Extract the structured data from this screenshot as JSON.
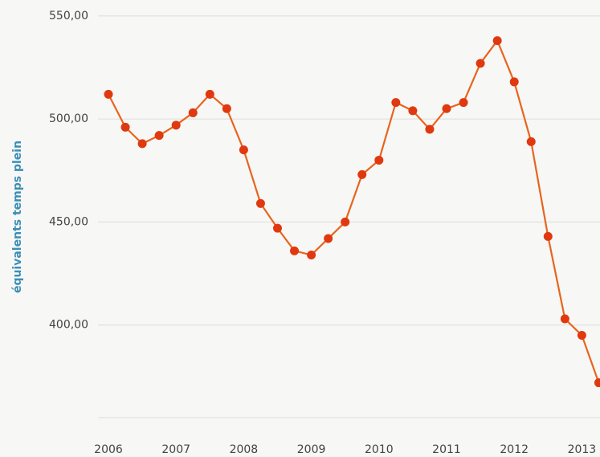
{
  "chart_data": {
    "type": "line",
    "y_label": "équivalents temps plein",
    "categories": [
      "2006",
      null,
      null,
      null,
      "2007",
      null,
      null,
      null,
      "2008",
      null,
      null,
      null,
      "2009",
      null,
      null,
      null,
      "2010",
      null,
      null,
      null,
      "2011",
      null,
      null,
      null,
      "2012",
      null,
      null,
      null,
      "2013",
      null
    ],
    "series": [
      {
        "name": "équivalents temps plein",
        "color": "#e8641e",
        "marker_color": "#e0390f",
        "values": [
          512,
          496,
          488,
          492,
          497,
          503,
          512,
          505,
          485,
          459,
          447,
          436,
          434,
          442,
          450,
          473,
          480,
          508,
          504,
          495,
          505,
          508,
          527,
          538,
          518,
          489,
          443,
          403,
          395,
          372
        ]
      }
    ],
    "ylim": [
      350,
      555
    ],
    "yticks": [
      {
        "value": 400,
        "label": "400,00"
      },
      {
        "value": 450,
        "label": "450,00"
      },
      {
        "value": 500,
        "label": "500,00"
      },
      {
        "value": 550,
        "label": "550,00"
      }
    ],
    "grid": true
  }
}
